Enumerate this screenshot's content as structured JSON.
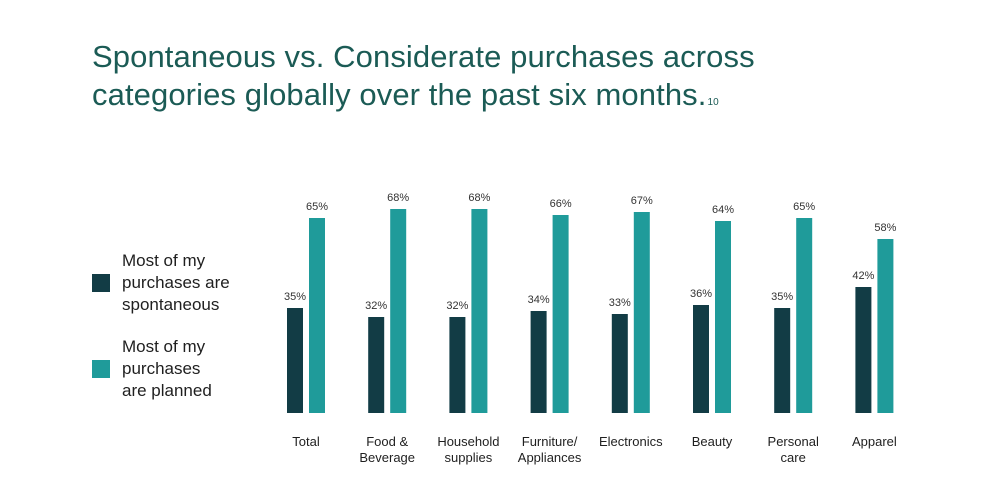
{
  "title": "Spontaneous vs. Considerate purchases across categories globally over the past six months.",
  "footnote": "10",
  "colors": {
    "spontaneous": "#123c45",
    "planned": "#1f9b9a",
    "title": "#1b5b55"
  },
  "legend": [
    {
      "label": "Most of my\npurchases are\nspontaneous",
      "color": "#123c45"
    },
    {
      "label": "Most of my\npurchases\nare planned",
      "color": "#1f9b9a"
    }
  ],
  "chart_data": {
    "type": "bar",
    "title": "Spontaneous vs. Considerate purchases across categories globally over the past six months.",
    "xlabel": "",
    "ylabel": "",
    "ylim": [
      0,
      80
    ],
    "categories": [
      [
        "Total"
      ],
      [
        "Food &",
        "Beverage"
      ],
      [
        "Household",
        "supplies"
      ],
      [
        "Furniture/",
        "Appliances"
      ],
      [
        "Electronics"
      ],
      [
        "Beauty"
      ],
      [
        "Personal",
        "care"
      ],
      [
        "Apparel"
      ]
    ],
    "series": [
      {
        "name": "Most of my purchases are spontaneous",
        "values": [
          35,
          32,
          32,
          34,
          33,
          36,
          35,
          42
        ],
        "labels": [
          "35%",
          "32%",
          "32%",
          "34%",
          "33%",
          "36%",
          "35%",
          "42%"
        ]
      },
      {
        "name": "Most of my purchases are planned",
        "values": [
          65,
          68,
          68,
          66,
          67,
          64,
          65,
          58
        ],
        "labels": [
          "65%",
          "68%",
          "68%",
          "66%",
          "67%",
          "64%",
          "65%",
          "58%"
        ]
      }
    ]
  }
}
